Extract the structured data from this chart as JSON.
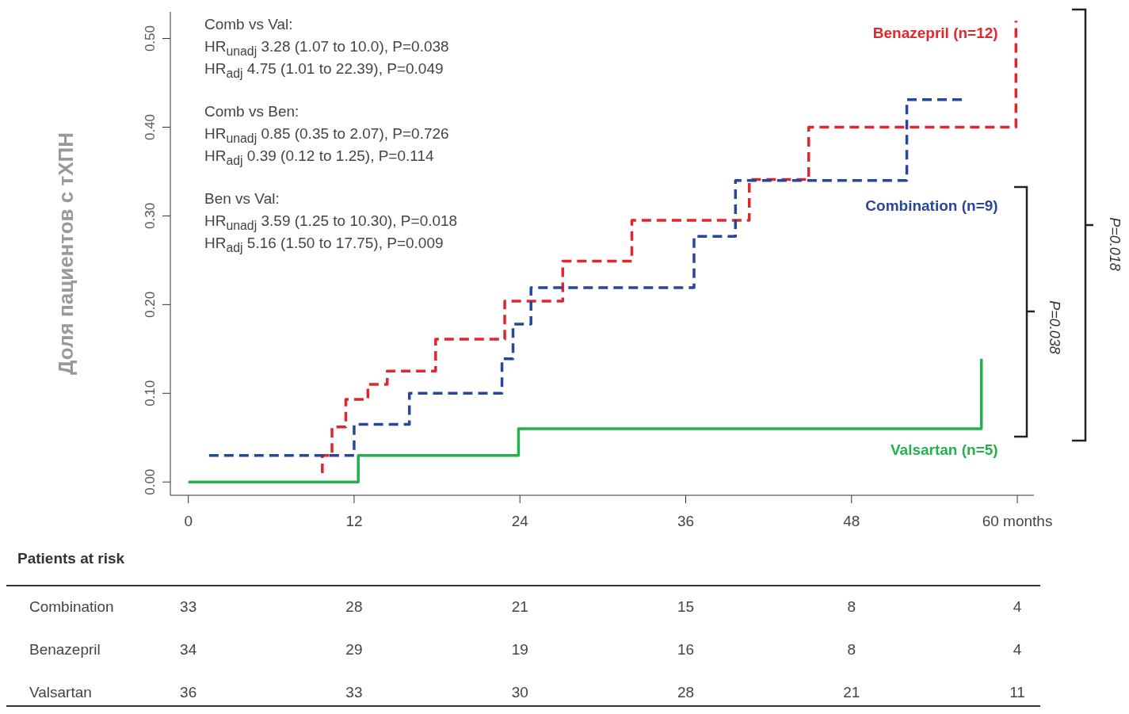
{
  "chart_data": {
    "type": "step",
    "ylabel": "Доля пациентов с тХПН",
    "xlim": [
      -1.3,
      61.2
    ],
    "xticks": [
      0,
      12,
      24,
      36,
      48,
      {
        "value": 60,
        "label": "60 months"
      }
    ],
    "ylim": [
      -0.015,
      0.53
    ],
    "yticks": [
      {
        "value": 0,
        "label": "0.00"
      },
      {
        "value": 0.1,
        "label": "0.10"
      },
      {
        "value": 0.2,
        "label": "0.20"
      },
      {
        "value": 0.3,
        "label": "0.30"
      },
      {
        "value": 0.4,
        "label": "0.40"
      },
      {
        "value": 0.5,
        "label": "0.50"
      }
    ],
    "marker": "none",
    "series": [
      {
        "name": "Benazepril (n=12)",
        "color": "#e0262e",
        "line_style": "dashed",
        "x": [
          9.7,
          9.7,
          10.4,
          11.4,
          13,
          14.4,
          17.9,
          22.9,
          27.1,
          32.1,
          40.6,
          44.9,
          59.9,
          59.9
        ],
        "values": [
          0.01,
          0.03,
          0.062,
          0.093,
          0.11,
          0.125,
          0.161,
          0.204,
          0.249,
          0.295,
          0.341,
          0.4,
          0.52,
          0.52
        ]
      },
      {
        "name": "Combination (n=9)",
        "color": "#27479a",
        "line_style": "dashed",
        "x": [
          1.5,
          12,
          16,
          22.7,
          23.5,
          24.8,
          36.6,
          39.6,
          52,
          56
        ],
        "values": [
          0.03,
          0.065,
          0.1,
          0.139,
          0.178,
          0.219,
          0.277,
          0.34,
          0.431,
          0.431
        ]
      },
      {
        "name": "Valsartan (n=5)",
        "color": "#22b14c",
        "line_style": "solid",
        "x": [
          0,
          12.3,
          23.9,
          57.4,
          57.4
        ],
        "values": [
          0,
          0.03,
          0.06,
          0.139,
          0.139
        ]
      }
    ],
    "annotations": [
      "Comb vs Val:",
      "HR$_{unadj}$ 3.28 (1.07 to 10.0), P=0.038",
      "HR$_{adj}$ 4.75 (1.01 to 22.39), P=0.049",
      "Comb vs Ben:",
      "HR$_{unadj}$ 0.85 (0.35 to 2.07), P=0.726",
      "HR$_{adj}$ 0.39 (0.12 to 1.25), P=0.114",
      "Ben vs Val:",
      "HR$_{unadj}$ 3.59 (1.25 to 10.30), P=0.018",
      "HR$_{adj}$ 5.16 (1.50 to 17.75), P=0.009",
      "P=0.018",
      "P=0.038",
      "Patients at risk",
      "Combination",
      "33",
      "28",
      "21",
      "15",
      "8",
      "4",
      "Benazepril",
      "34",
      "29",
      "19",
      "16",
      "8",
      "4",
      "Valsartan",
      "36",
      "33",
      "30",
      "28",
      "21",
      "11"
    ]
  }
}
